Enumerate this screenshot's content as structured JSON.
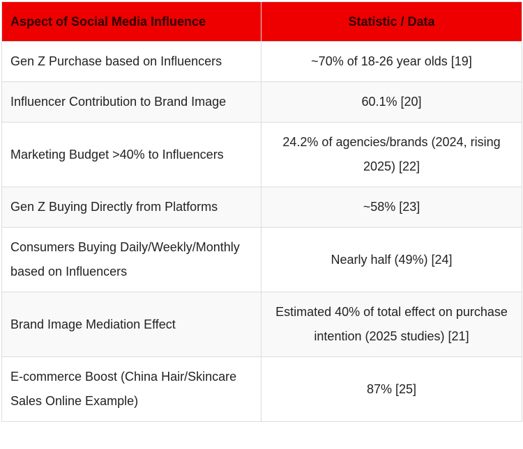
{
  "table": {
    "columns": [
      "Aspect of Social Media Influence",
      "Statistic / Data"
    ],
    "rows": [
      [
        "Gen Z Purchase based on Influencers",
        "~70% of 18-26 year olds [19]"
      ],
      [
        "Influencer Contribution to Brand Image",
        "60.1% [20]"
      ],
      [
        "Marketing Budget >40% to Influencers",
        "24.2% of agencies/brands (2024, rising 2025) [22]"
      ],
      [
        "Gen Z Buying Directly from Platforms",
        "~58% [23]"
      ],
      [
        "Consumers Buying Daily/Weekly/Monthly based on Influencers",
        "Nearly half (49%) [24]"
      ],
      [
        "Brand Image Mediation Effect",
        "Estimated 40% of total effect on purchase intention (2025 studies) [21]"
      ],
      [
        "E-commerce Boost (China Hair/Skincare Sales Online Example)",
        "87% [25]"
      ]
    ]
  }
}
